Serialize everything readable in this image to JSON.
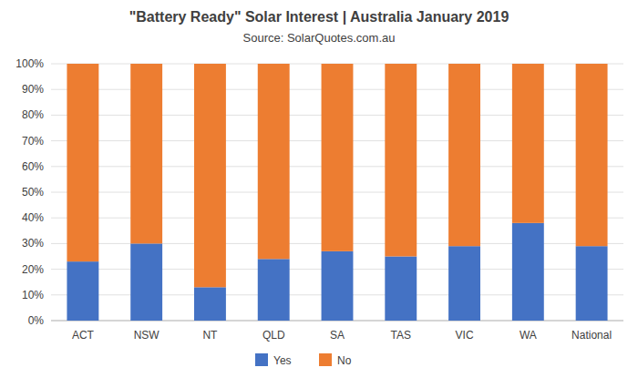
{
  "chart_data": {
    "type": "bar",
    "stacked": true,
    "title": "\"Battery Ready\" Solar Interest  |  Australia January 2019",
    "subtitle": "Source: SolarQuotes.com.au",
    "categories": [
      "ACT",
      "NSW",
      "NT",
      "QLD",
      "SA",
      "TAS",
      "VIC",
      "WA",
      "National"
    ],
    "series": [
      {
        "name": "Yes",
        "color": "#4472C4",
        "values": [
          23,
          30,
          13,
          24,
          27,
          25,
          29,
          38,
          29
        ]
      },
      {
        "name": "No",
        "color": "#ED7D31",
        "values": [
          77,
          70,
          87,
          76,
          73,
          75,
          71,
          62,
          71
        ]
      }
    ],
    "ylim": [
      0,
      100
    ],
    "yticks": [
      {
        "value": 0,
        "label": "0%"
      },
      {
        "value": 10,
        "label": "10%"
      },
      {
        "value": 20,
        "label": "20%"
      },
      {
        "value": 30,
        "label": "30%"
      },
      {
        "value": 40,
        "label": "40%"
      },
      {
        "value": 50,
        "label": "50%"
      },
      {
        "value": 60,
        "label": "60%"
      },
      {
        "value": 70,
        "label": "70%"
      },
      {
        "value": 80,
        "label": "80%"
      },
      {
        "value": 90,
        "label": "90%"
      },
      {
        "value": 100,
        "label": "100%"
      }
    ],
    "grid": true,
    "legend": "bottom"
  }
}
